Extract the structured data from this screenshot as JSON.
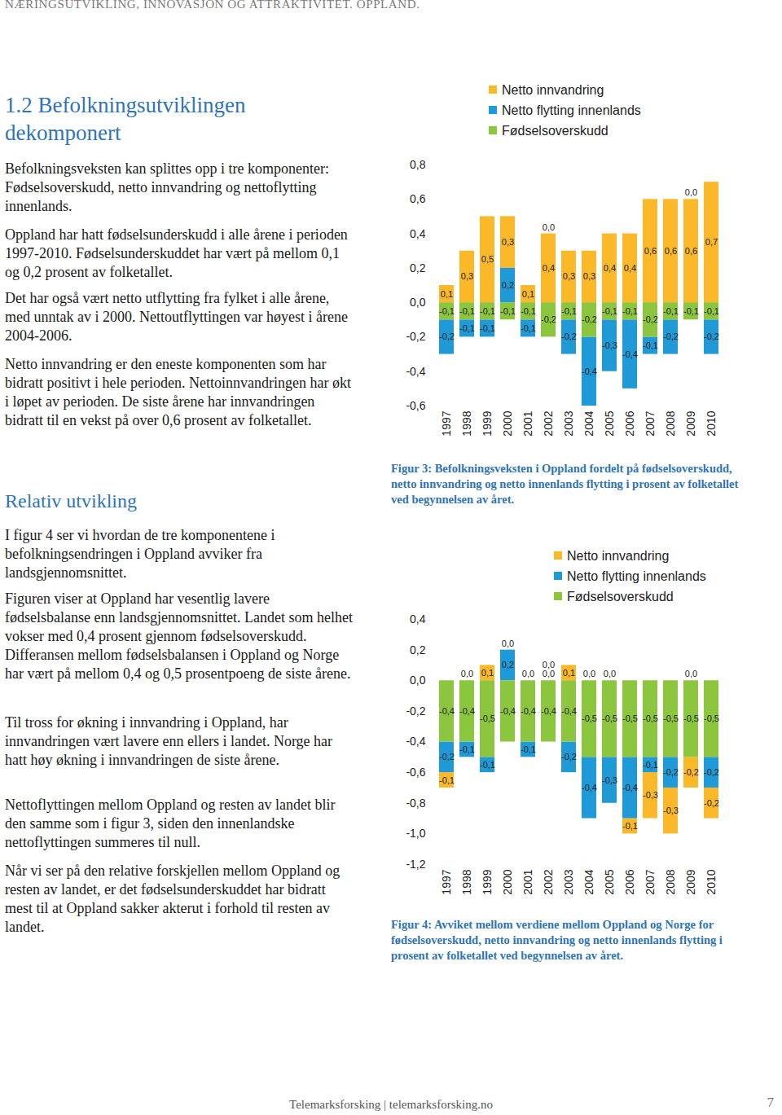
{
  "header": "NÆRINGSUTVIKLING, INNOVASJON OG ATTRAKTIVITET. OPPLAND.",
  "heading": "1.2 Befolkningsutviklingen dekomponert",
  "paragraphs_1": [
    "Befolkningsveksten kan splittes opp i tre komponenter: Fødselsoverskudd, netto innvandring og nettoflytting innenlands.",
    "Oppland har hatt fødselsunderskudd i alle årene i perioden 1997-2010. Fødselsunderskuddet har vært på mellom 0,1 og 0,2 prosent av folketallet.",
    "Det har også vært netto utflytting fra fylket i alle årene, med unntak av i 2000. Nettoutflyttingen var høyest i årene 2004-2006.",
    "Netto innvandring er den eneste komponenten som har bidratt positivt i hele perioden. Nettoinnvandringen har økt i løpet av perioden. De siste årene har innvandringen bidratt til en vekst på over 0,6 prosent av folketallet."
  ],
  "subheading": "Relativ utvikling",
  "paragraphs_2": [
    "I figur 4 ser vi hvordan de tre komponentene i befolkningsendringen i Oppland avviker fra landsgjennomsnittet.",
    "Figuren viser at Oppland har vesentlig lavere fødselsbalanse enn landsgjennomsnittet. Landet som helhet vokser med 0,4 prosent gjennom fødselsoverskudd. Differansen mellom fødselsbalansen i Oppland og Norge har vært på mellom 0,4 og 0,5 prosentpoeng de siste årene.",
    "Til tross for økning i innvandring i Oppland, har innvandringen vært lavere enn ellers i landet. Norge har hatt høy økning i innvandringen de siste årene.",
    "Nettoflyttingen mellom Oppland og resten av landet blir den samme som i figur 3, siden den innenlandske nettoflyttingen summeres til null.",
    "Når vi ser på den relative forskjellen mellom Oppland og resten av landet, er det fødselsunderskuddet har bidratt mest til at Oppland sakker akterut i forhold til resten av landet."
  ],
  "chart_data": [
    {
      "type": "bar",
      "stacked": true,
      "data_labels": true,
      "legend": "top",
      "caption": "Figur 3: Befolkningsveksten i Oppland fordelt på fødselsoverskudd, netto innvandring og netto innenlands flytting i prosent av folketallet ved begynnelsen av året.",
      "categories": [
        "1997",
        "1998",
        "1999",
        "2000",
        "2001",
        "2002",
        "2003",
        "2004",
        "2005",
        "2006",
        "2007",
        "2008",
        "2009",
        "2010"
      ],
      "ylim": [
        -0.6,
        0.8
      ],
      "yticks": [
        {
          "value": -0.6,
          "label": "-0,6"
        },
        {
          "value": -0.4,
          "label": "-0,4"
        },
        {
          "value": -0.2,
          "label": "-0,2"
        },
        {
          "value": 0,
          "label": "0,0"
        },
        {
          "value": 0.2,
          "label": "0,2"
        },
        {
          "value": 0.4,
          "label": "0,4"
        },
        {
          "value": 0.6,
          "label": "0,6"
        },
        {
          "value": 0.8,
          "label": "0,8"
        }
      ],
      "series": [
        {
          "name": "Netto innvandring",
          "color": "#fbb829",
          "values": [
            0.1,
            0.3,
            0.5,
            0.3,
            0.1,
            0.4,
            0.3,
            0.3,
            0.4,
            0.4,
            0.6,
            0.6,
            0.6,
            0.7
          ],
          "value_labels": [
            "0,1",
            "0,3",
            "0,5",
            "0,3",
            "0,1",
            "0,4",
            "0,3",
            "0,3",
            "0,4",
            "0,4",
            "0,6",
            "0,6",
            "0,6",
            "0,7"
          ]
        },
        {
          "name": "Netto flytting innenlands",
          "color": "#1f9ad6",
          "values": [
            -0.2,
            -0.1,
            -0.1,
            0.2,
            -0.1,
            0.0,
            -0.2,
            -0.4,
            -0.3,
            -0.4,
            -0.1,
            -0.2,
            0.0,
            -0.2
          ],
          "value_labels": [
            "-0,2",
            "-0,1",
            "-0,1",
            "0,2",
            "-0,1",
            "0,0",
            "-0,2",
            "-0,4",
            "-0,3",
            "-0,4",
            "-0,1",
            "-0,2",
            "0,0",
            "-0,2"
          ]
        },
        {
          "name": "Fødselsoverskudd",
          "color": "#8cc63f",
          "values": [
            -0.1,
            -0.1,
            -0.1,
            -0.1,
            -0.1,
            -0.2,
            -0.1,
            -0.2,
            -0.1,
            -0.1,
            -0.2,
            -0.1,
            -0.1,
            -0.1
          ],
          "value_labels": [
            "-0,1",
            "-0,1",
            "-0,1",
            "-0,1",
            "-0,1",
            "-0,2",
            "-0,1",
            "-0,2",
            "-0,1",
            "-0,1",
            "-0,2",
            "-0,1",
            "-0,1",
            "-0,1"
          ]
        }
      ]
    },
    {
      "type": "bar",
      "stacked": true,
      "data_labels": true,
      "legend": "top-right",
      "caption": "Figur 4: Avviket mellom verdiene mellom Oppland og Norge for fødselsoverskudd, netto innvandring og netto innenlands flytting i prosent av folketallet ved begynnelsen av året.",
      "categories": [
        "1997",
        "1998",
        "1999",
        "2000",
        "2001",
        "2002",
        "2003",
        "2004",
        "2005",
        "2006",
        "2007",
        "2008",
        "2009",
        "2010"
      ],
      "ylim": [
        -1.2,
        0.4
      ],
      "yticks": [
        {
          "value": -1.2,
          "label": "-1,2"
        },
        {
          "value": -1.0,
          "label": "-1,0"
        },
        {
          "value": -0.8,
          "label": "-0,8"
        },
        {
          "value": -0.6,
          "label": "-0,6"
        },
        {
          "value": -0.4,
          "label": "-0,4"
        },
        {
          "value": -0.2,
          "label": "-0,2"
        },
        {
          "value": 0,
          "label": "0,0"
        },
        {
          "value": 0.2,
          "label": "0,2"
        },
        {
          "value": 0.4,
          "label": "0,4"
        }
      ],
      "series": [
        {
          "name": "Netto innvandring",
          "color": "#fbb829",
          "values": [
            -0.1,
            0.0,
            0.1,
            0.0,
            0.0,
            0.0,
            0.1,
            0.0,
            0.0,
            -0.1,
            -0.3,
            -0.3,
            -0.2,
            -0.2
          ],
          "value_labels": [
            "-0,1",
            "0,0",
            "0,1",
            "0,0",
            "0,0",
            "0,0",
            "0,1",
            "0,0",
            "0,0",
            "-0,1",
            "-0,3",
            "-0,3",
            "-0,2",
            "-0,2"
          ]
        },
        {
          "name": "Netto flytting innenlands",
          "color": "#1f9ad6",
          "values": [
            -0.2,
            -0.1,
            -0.1,
            0.2,
            -0.1,
            0.0,
            -0.2,
            -0.4,
            -0.3,
            -0.4,
            -0.1,
            -0.2,
            0.0,
            -0.2
          ],
          "value_labels": [
            "-0,2",
            "-0,1",
            "-0,1",
            "0,2",
            "-0,1",
            "0,0",
            "-0,2",
            "-0,4",
            "-0,3",
            "-0,4",
            "-0,1",
            "-0,2",
            "0,0",
            "-0,2"
          ]
        },
        {
          "name": "Fødselsoverskudd",
          "color": "#8cc63f",
          "values": [
            -0.4,
            -0.4,
            -0.5,
            -0.4,
            -0.4,
            -0.4,
            -0.4,
            -0.5,
            -0.5,
            -0.5,
            -0.5,
            -0.5,
            -0.5,
            -0.5
          ],
          "value_labels": [
            "-0,4",
            "-0,4",
            "-0,5",
            "-0,4",
            "-0,4",
            "-0,4",
            "-0,4",
            "-0,5",
            "-0,5",
            "-0,5",
            "-0,5",
            "-0,5",
            "-0,5",
            "-0,5"
          ]
        }
      ]
    }
  ],
  "footer": "Telemarksforsking | telemarksforsking.no",
  "page_number": 7
}
